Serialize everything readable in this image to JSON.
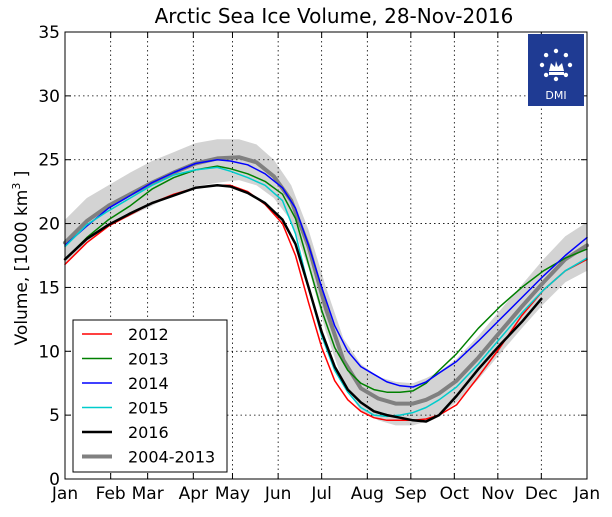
{
  "chart_data": {
    "type": "line",
    "title": "Arctic Sea Ice Volume, 28-Nov-2016",
    "xlabel": "",
    "ylabel_main": "Volume, [1000 km",
    "ylabel_sup": "3",
    "ylabel_end": " ]",
    "ylim": [
      0,
      35
    ],
    "yticks": [
      0,
      5,
      10,
      15,
      20,
      25,
      30,
      35
    ],
    "xlim": [
      0,
      12
    ],
    "x_ticks": [
      {
        "label": "Jan",
        "x": 0
      },
      {
        "label": "Feb",
        "x": 1.05
      },
      {
        "label": "Mar",
        "x": 1.9
      },
      {
        "label": "Apr",
        "x": 2.95
      },
      {
        "label": "May",
        "x": 3.85
      },
      {
        "label": "Jun",
        "x": 4.9
      },
      {
        "label": "Jul",
        "x": 5.9
      },
      {
        "label": "Aug",
        "x": 6.95
      },
      {
        "label": "Sep",
        "x": 7.95
      },
      {
        "label": "Oct",
        "x": 8.95
      },
      {
        "label": "Nov",
        "x": 9.95
      },
      {
        "label": "Dec",
        "x": 10.95
      },
      {
        "label": "Jan",
        "x": 12
      }
    ],
    "grid": true,
    "legend_position": "lower-left",
    "band": {
      "color": "#d3d3d3",
      "x": [
        0,
        0.5,
        1,
        1.5,
        2,
        2.5,
        3,
        3.5,
        4,
        4.4,
        4.8,
        5.2,
        5.6,
        6,
        6.4,
        6.8,
        7.2,
        7.6,
        8,
        8.3,
        8.6,
        9,
        9.5,
        10,
        10.5,
        11,
        11.5,
        12
      ],
      "upper": [
        20.3,
        22,
        23,
        24,
        24.9,
        25.6,
        26.3,
        26.6,
        26.6,
        26.2,
        25,
        23,
        19.5,
        15,
        11,
        9,
        8,
        7.6,
        7.5,
        7.9,
        8.4,
        9.4,
        11.2,
        13.2,
        15.2,
        17.2,
        19,
        20.1
      ],
      "lower": [
        16.8,
        18.5,
        19.8,
        20.6,
        21.4,
        22.3,
        22.9,
        23.2,
        23.4,
        23,
        22,
        20.2,
        16.5,
        11.5,
        7.5,
        5.3,
        4.6,
        4.2,
        4.2,
        4.5,
        5,
        6,
        7.8,
        9.8,
        11.8,
        13.7,
        15.4,
        16.3
      ]
    },
    "series": [
      {
        "name": "2012",
        "color": "#ff0000",
        "width": 1.5,
        "x": [
          0,
          0.5,
          1,
          1.5,
          2,
          2.5,
          3,
          3.5,
          3.8,
          4.2,
          4.6,
          5,
          5.3,
          5.6,
          5.9,
          6.2,
          6.5,
          6.8,
          7.1,
          7.4,
          7.7,
          8,
          8.3,
          8.6,
          9,
          9.5,
          10,
          10.5,
          11,
          11.5,
          12
        ],
        "y": [
          16.8,
          18.5,
          19.8,
          20.7,
          21.6,
          22.3,
          22.8,
          23,
          23,
          22.5,
          21.5,
          20,
          17.5,
          13.8,
          10.3,
          7.7,
          6.2,
          5.3,
          4.8,
          4.6,
          4.6,
          4.6,
          4.7,
          5,
          5.8,
          8,
          10.3,
          12.8,
          14.8,
          16.3,
          17.2
        ]
      },
      {
        "name": "2013",
        "color": "#008000",
        "width": 1.5,
        "x": [
          0,
          0.5,
          1,
          1.5,
          2,
          2.5,
          3,
          3.5,
          3.8,
          4.2,
          4.6,
          5,
          5.3,
          5.6,
          5.9,
          6.2,
          6.5,
          6.8,
          7.1,
          7.4,
          7.7,
          8,
          8.3,
          8.6,
          9,
          9.5,
          10,
          10.5,
          11,
          11.5,
          12
        ],
        "y": [
          17.2,
          18.9,
          20.3,
          21.4,
          22.7,
          23.6,
          24.2,
          24.5,
          24.3,
          23.9,
          23.3,
          22.3,
          20.4,
          16.8,
          13.2,
          10.3,
          8.5,
          7.5,
          7,
          6.8,
          6.8,
          6.9,
          7.5,
          8.5,
          9.8,
          11.8,
          13.5,
          15,
          16.3,
          17.3,
          18
        ]
      },
      {
        "name": "2014",
        "color": "#0000ff",
        "width": 1.5,
        "x": [
          0,
          0.5,
          1,
          1.5,
          2,
          2.5,
          3,
          3.5,
          3.8,
          4.2,
          4.6,
          5,
          5.3,
          5.6,
          5.9,
          6.2,
          6.5,
          6.8,
          7.1,
          7.4,
          7.7,
          8,
          8.3,
          8.6,
          9,
          9.5,
          10,
          10.5,
          11,
          11.5,
          12
        ],
        "y": [
          18.3,
          19.8,
          21.2,
          22.2,
          23.2,
          24,
          24.7,
          25,
          24.9,
          24.6,
          23.9,
          22.8,
          21.2,
          18.3,
          15,
          12,
          10,
          8.8,
          8.2,
          7.6,
          7.3,
          7.2,
          7.6,
          8.3,
          9.2,
          10.8,
          12.5,
          14.2,
          15.9,
          17.5,
          18.9
        ]
      },
      {
        "name": "2015",
        "color": "#00cccc",
        "width": 1.5,
        "x": [
          0,
          0.5,
          1,
          1.5,
          2,
          2.5,
          3,
          3.5,
          3.8,
          4.2,
          4.6,
          5,
          5.3,
          5.6,
          5.9,
          6.2,
          6.5,
          6.8,
          7.1,
          7.4,
          7.7,
          8,
          8.3,
          8.6,
          9,
          9.5,
          10,
          10.5,
          11,
          11.5,
          12
        ],
        "y": [
          18.2,
          19.9,
          21,
          22,
          23,
          23.8,
          24.2,
          24.4,
          24.1,
          23.6,
          23,
          21.8,
          19.2,
          15,
          11.2,
          8.5,
          6.8,
          5.6,
          5,
          4.9,
          5,
          5.2,
          5.6,
          6.2,
          7.2,
          9,
          11,
          13,
          14.8,
          16.3,
          17.3
        ]
      },
      {
        "name": "2016",
        "color": "#000000",
        "width": 2.5,
        "x": [
          0,
          0.5,
          1,
          1.5,
          2,
          2.5,
          3,
          3.5,
          3.8,
          4.2,
          4.6,
          5,
          5.3,
          5.6,
          5.9,
          6.2,
          6.5,
          6.8,
          7.1,
          7.4,
          7.7,
          8,
          8.3,
          8.6,
          9,
          9.5,
          10,
          10.5,
          10.95
        ],
        "y": [
          17.2,
          18.8,
          19.9,
          20.8,
          21.6,
          22.2,
          22.8,
          23,
          22.9,
          22.4,
          21.6,
          20.3,
          18.4,
          15,
          11.5,
          8.8,
          7,
          6,
          5.3,
          5,
          4.8,
          4.6,
          4.5,
          5,
          6.5,
          8.6,
          10.5,
          12.3,
          14.1
        ]
      },
      {
        "name": "2004-2013",
        "color": "#808080",
        "width": 4,
        "x": [
          0,
          0.5,
          1,
          1.5,
          2,
          2.5,
          3,
          3.5,
          4,
          4.4,
          4.8,
          5.2,
          5.6,
          6,
          6.4,
          6.8,
          7.2,
          7.6,
          8,
          8.3,
          8.6,
          9,
          9.5,
          10,
          10.5,
          11,
          11.5,
          12
        ],
        "y": [
          18.5,
          20.2,
          21.4,
          22.3,
          23.2,
          24,
          24.7,
          25.1,
          25.2,
          24.8,
          23.7,
          21.8,
          18.2,
          13.3,
          9.3,
          7.1,
          6.3,
          5.9,
          5.9,
          6.2,
          6.7,
          7.7,
          9.5,
          11.5,
          13.5,
          15.4,
          17.2,
          18.3
        ]
      }
    ]
  },
  "logo": {
    "text": "DMI",
    "bg_color": "#1f3b93",
    "fg_color": "#ffffff"
  }
}
